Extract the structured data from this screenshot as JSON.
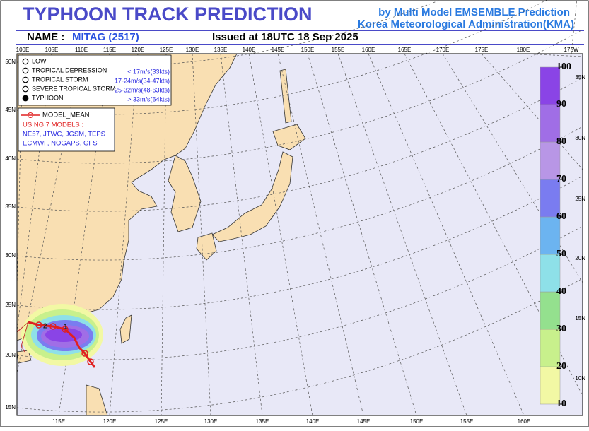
{
  "header": {
    "title": "TYPHOON  TRACK  PREDICTION",
    "subtitle_1": "by Multi Model EMSEMBLE Prediction",
    "subtitle_2": "Korea Meteorological Administration(KMA)",
    "name_label": "NAME :",
    "name": "MITAG (2517)",
    "issued": "Issued at  18UTC 18 Sep 2025"
  },
  "map": {
    "lon_top": [
      "100E",
      "105E",
      "110E",
      "115E",
      "120E",
      "125E",
      "130E",
      "135E",
      "140E",
      "145E",
      "150E",
      "155E",
      "160E",
      "165E",
      "170E",
      "175E",
      "180E",
      "175W"
    ],
    "lon_bottom": [
      "115E",
      "120E",
      "125E",
      "130E",
      "135E",
      "140E",
      "145E",
      "150E",
      "155E",
      "160E"
    ],
    "lat_left": [
      "50N",
      "45N",
      "40N",
      "35N",
      "30N",
      "25N",
      "20N",
      "15N"
    ],
    "lat_right": [
      "35N",
      "30N",
      "25N",
      "20N",
      "15N",
      "10N"
    ],
    "track_labels": [
      "2",
      "1"
    ]
  },
  "legend": {
    "intensity": [
      {
        "label": "LOW",
        "desc": null
      },
      {
        "label": "TROPICAL DEPRESSION",
        "desc": "< 17m/s(33kts)"
      },
      {
        "label": "TROPICAL STORM",
        "desc": "17-24m/s(34-47kts)"
      },
      {
        "label": "SEVERE TROPICAL STORM",
        "desc": "25-32m/s(48-63kts)"
      },
      {
        "label": "TYPHOON",
        "desc": "> 33m/s(64kts)"
      }
    ],
    "model_mean": "MODEL_MEAN",
    "models_title": "USING 7 MODELS :",
    "models_1": "NE57, JTWC, JGSM, TEPS",
    "models_2": "ECMWF, NOGAPS, GFS"
  },
  "colorbar": {
    "ticks": [
      10,
      20,
      30,
      40,
      50,
      60,
      70,
      80,
      90,
      100
    ],
    "colors": [
      "#f2f8a4",
      "#c8f08c",
      "#94e08e",
      "#8ee0e8",
      "#6cb4f0",
      "#7a7cf0",
      "#b896e6",
      "#a06ee6",
      "#8a44e6"
    ]
  }
}
